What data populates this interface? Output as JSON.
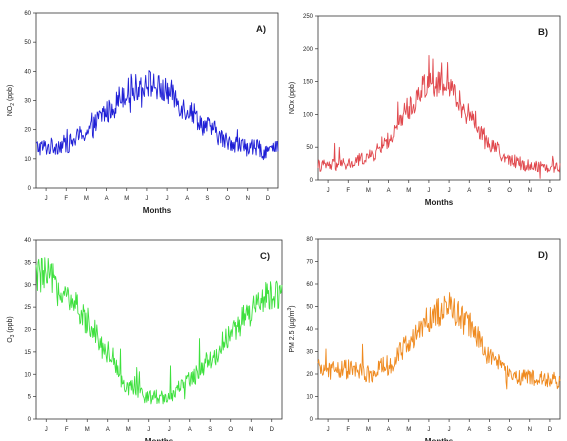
{
  "figure": {
    "months": [
      "J",
      "F",
      "M",
      "A",
      "M",
      "J",
      "J",
      "A",
      "S",
      "O",
      "N",
      "D"
    ],
    "panels": [
      {
        "label": "A)",
        "ylabel": "NO2 (ppb)",
        "ylabel_main": "NO",
        "ylabel_sub": "2",
        "ylabel_rest": " (ppb)",
        "xlabel": "Months",
        "color": "#1f1fd6",
        "ylim": [
          0,
          60
        ],
        "yticks": [
          0,
          10,
          20,
          30,
          40,
          50,
          60
        ]
      },
      {
        "label": "B)",
        "ylabel": "NOx (ppb)",
        "ylabel_main": "NOx (ppb)",
        "ylabel_sub": "",
        "ylabel_rest": "",
        "xlabel": "Months",
        "color": "#e0484d",
        "ylim": [
          0,
          250
        ],
        "yticks": [
          0,
          50,
          100,
          150,
          200,
          250
        ]
      },
      {
        "label": "C)",
        "ylabel": "O3 (ppb)",
        "ylabel_main": "O",
        "ylabel_sub": "3",
        "ylabel_rest": " (ppb)",
        "xlabel": "Months",
        "color": "#3ee03e",
        "ylim": [
          0,
          40
        ],
        "yticks": [
          0,
          5,
          10,
          15,
          20,
          25,
          30,
          35,
          40
        ]
      },
      {
        "label": "D)",
        "ylabel": "PM 2.5 (µg/m3)",
        "ylabel_main": "PM 2.5 (µg/m",
        "ylabel_sub": "3",
        "ylabel_rest": ")",
        "xlabel": "Months",
        "color": "#ef8a1f",
        "ylim": [
          0,
          80
        ],
        "yticks": [
          0,
          10,
          20,
          30,
          40,
          50,
          60,
          70,
          80
        ]
      }
    ]
  },
  "chart_data": [
    {
      "type": "line",
      "title": "A)",
      "xlabel": "Months",
      "ylabel": "NO2 (ppb)",
      "ylim": [
        0,
        60
      ],
      "categories": [
        "J",
        "F",
        "M",
        "A",
        "M",
        "J",
        "J",
        "A",
        "S",
        "O",
        "N",
        "D"
      ],
      "series": [
        {
          "values": [
            14,
            15,
            19,
            26,
            33,
            36,
            33,
            27,
            21,
            16,
            14,
            13
          ]
        }
      ]
    },
    {
      "type": "line",
      "title": "B)",
      "xlabel": "Months",
      "ylabel": "NOx (ppb)",
      "ylim": [
        0,
        250
      ],
      "categories": [
        "J",
        "F",
        "M",
        "A",
        "M",
        "J",
        "J",
        "A",
        "S",
        "O",
        "N",
        "D"
      ],
      "series": [
        {
          "values": [
            22,
            24,
            35,
            60,
            110,
            150,
            140,
            100,
            55,
            30,
            22,
            20
          ]
        }
      ]
    },
    {
      "type": "line",
      "title": "C)",
      "xlabel": "Months",
      "ylabel": "O3 (ppb)",
      "ylim": [
        0,
        40
      ],
      "categories": [
        "J",
        "F",
        "M",
        "A",
        "M",
        "J",
        "J",
        "A",
        "S",
        "O",
        "N",
        "D"
      ],
      "series": [
        {
          "values": [
            32,
            27,
            22,
            15,
            7,
            5,
            5,
            9,
            13,
            19,
            24,
            28
          ]
        }
      ]
    },
    {
      "type": "line",
      "title": "D)",
      "xlabel": "Months",
      "ylabel": "PM 2.5 (µg/m3)",
      "ylim": [
        0,
        80
      ],
      "categories": [
        "J",
        "F",
        "M",
        "A",
        "M",
        "J",
        "J",
        "A",
        "S",
        "O",
        "N",
        "D"
      ],
      "series": [
        {
          "values": [
            22,
            22,
            20,
            24,
            33,
            45,
            50,
            42,
            28,
            20,
            18,
            17
          ]
        }
      ]
    }
  ]
}
